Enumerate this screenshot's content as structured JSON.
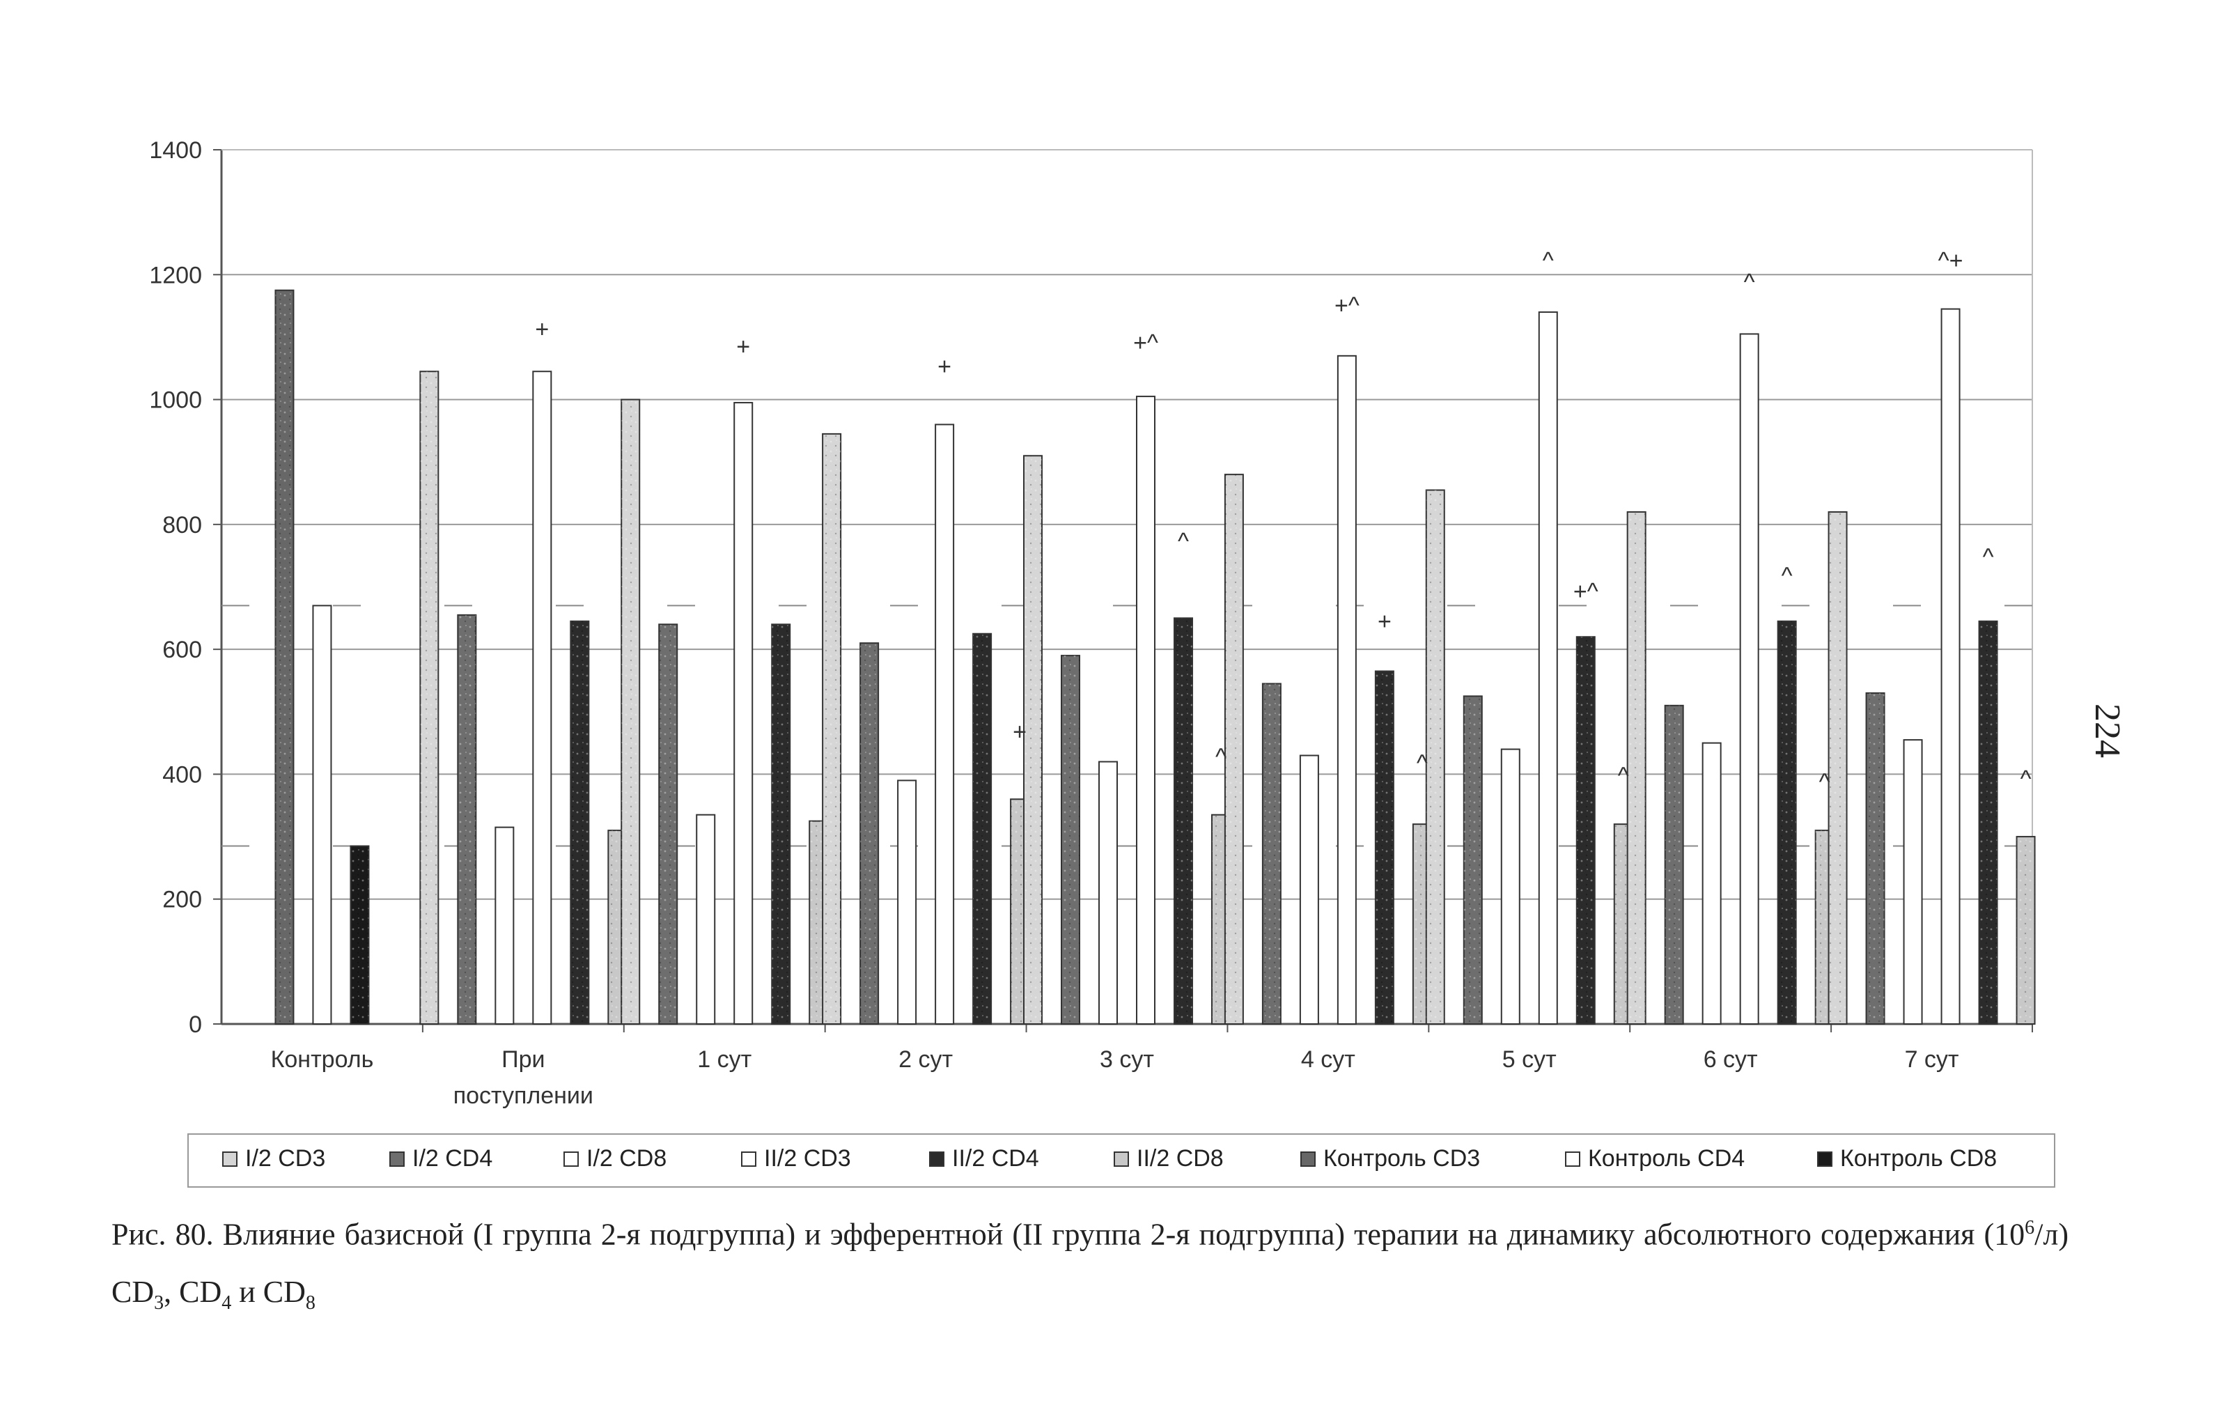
{
  "page_number": "224",
  "caption": {
    "prefix": "Рис. 80. Влияние базисной (I группа 2-я подгруппа) и эфферентной (II группа 2-я подгруппа) терапии на динамику абсолютного содержания (10",
    "sup": "6",
    "mid": "/л) CD",
    "sub1": "3",
    "sep1": ", CD",
    "sub2": "4",
    "sep2": " и CD",
    "sub3": "8"
  },
  "colors": {
    "I2_CD3": "#d6d6d6",
    "I2_CD4": "#6e6e6e",
    "I2_CD8": "#ffffff",
    "II2_CD3": "#ffffff",
    "II2_CD4": "#2b2b2b",
    "II2_CD8": "#c8c8c8",
    "Control_CD3": "#676767",
    "Control_CD4": "#ffffff",
    "Control_CD8": "#1a1a1a"
  },
  "chart_data": {
    "type": "bar",
    "title": "",
    "xlabel": "",
    "ylabel": "",
    "ylim": [
      0,
      1400
    ],
    "yticks": [
      "0",
      "200",
      "400",
      "600",
      "800",
      "1000",
      "1200",
      "1400"
    ],
    "grid": true,
    "legend_position": "bottom",
    "categories": [
      "Контроль",
      "При поступлении",
      "1 сут",
      "2 сут",
      "3 сут",
      "4 сут",
      "5 сут",
      "6 сут",
      "7 сут"
    ],
    "category_labels": [
      [
        "Контроль"
      ],
      [
        "При",
        "поступлении"
      ],
      [
        "1 сут"
      ],
      [
        "2 сут"
      ],
      [
        "3 сут"
      ],
      [
        "4 сут"
      ],
      [
        "5 сут"
      ],
      [
        "6 сут"
      ],
      [
        "7 сут"
      ]
    ],
    "series": [
      {
        "key": "I2_CD3",
        "name": "I/2 CD3",
        "values": [
          null,
          1045,
          1000,
          945,
          910,
          880,
          855,
          820,
          820
        ]
      },
      {
        "key": "I2_CD4",
        "name": "I/2 CD4",
        "values": [
          null,
          655,
          640,
          610,
          590,
          545,
          525,
          510,
          530
        ]
      },
      {
        "key": "I2_CD8",
        "name": "I/2 CD8",
        "values": [
          null,
          315,
          335,
          390,
          420,
          430,
          440,
          450,
          455
        ]
      },
      {
        "key": "II2_CD3",
        "name": "II/2 CD3",
        "values": [
          null,
          1045,
          995,
          960,
          1005,
          1070,
          1140,
          1105,
          1145
        ]
      },
      {
        "key": "II2_CD4",
        "name": "II/2 CD4",
        "values": [
          null,
          645,
          640,
          625,
          650,
          565,
          620,
          645,
          645
        ]
      },
      {
        "key": "II2_CD8",
        "name": "II/2 CD8",
        "values": [
          null,
          310,
          325,
          360,
          335,
          320,
          320,
          310,
          300
        ]
      },
      {
        "key": "Control_CD3",
        "name": "Контроль CD3",
        "values": [
          1175,
          null,
          null,
          null,
          null,
          null,
          null,
          null,
          null
        ]
      },
      {
        "key": "Control_CD4",
        "name": "Контроль CD4",
        "values": [
          670,
          null,
          null,
          null,
          null,
          null,
          null,
          null,
          null
        ]
      },
      {
        "key": "Control_CD8",
        "name": "Контроль CD8",
        "values": [
          285,
          null,
          null,
          null,
          null,
          null,
          null,
          null,
          null
        ]
      }
    ],
    "control_reference_lines": [
      {
        "key": "Control_CD4",
        "value": 670
      },
      {
        "key": "Control_CD8",
        "value": 285
      }
    ],
    "annotations": [
      {
        "category": "При поступлении",
        "series": "II2_CD3",
        "text": "+",
        "value": 1100
      },
      {
        "category": "1 сут",
        "series": "II2_CD3",
        "text": "+",
        "value": 1072
      },
      {
        "category": "2 сут",
        "series": "II2_CD3",
        "text": "+",
        "value": 1040
      },
      {
        "category": "2 сут",
        "series": "II2_CD8",
        "text": "+",
        "value": 455
      },
      {
        "category": "3 сут",
        "series": "II2_CD3",
        "text": "+^",
        "value": 1078
      },
      {
        "category": "3 сут",
        "series": "II2_CD4",
        "text": "^",
        "value": 760
      },
      {
        "category": "3 сут",
        "series": "II2_CD8",
        "text": "^",
        "value": 415
      },
      {
        "category": "4 сут",
        "series": "II2_CD3",
        "text": "+^",
        "value": 1138
      },
      {
        "category": "4 сут",
        "series": "II2_CD4",
        "text": "+",
        "value": 632
      },
      {
        "category": "4 сут",
        "series": "II2_CD8",
        "text": "^",
        "value": 405
      },
      {
        "category": "5 сут",
        "series": "II2_CD3",
        "text": "^",
        "value": 1210
      },
      {
        "category": "5 сут",
        "series": "II2_CD4",
        "text": "+^",
        "value": 680
      },
      {
        "category": "5 сут",
        "series": "II2_CD8",
        "text": "^",
        "value": 385
      },
      {
        "category": "6 сут",
        "series": "II2_CD3",
        "text": "^",
        "value": 1175
      },
      {
        "category": "6 сут",
        "series": "II2_CD4",
        "text": "^",
        "value": 705
      },
      {
        "category": "6 сут",
        "series": "II2_CD8",
        "text": "^",
        "value": 375
      },
      {
        "category": "7 сут",
        "series": "II2_CD3",
        "text": "^+",
        "value": 1210
      },
      {
        "category": "7 сут",
        "series": "II2_CD4",
        "text": "^",
        "value": 735
      },
      {
        "category": "7 сут",
        "series": "II2_CD8",
        "text": "^",
        "value": 380
      }
    ]
  }
}
